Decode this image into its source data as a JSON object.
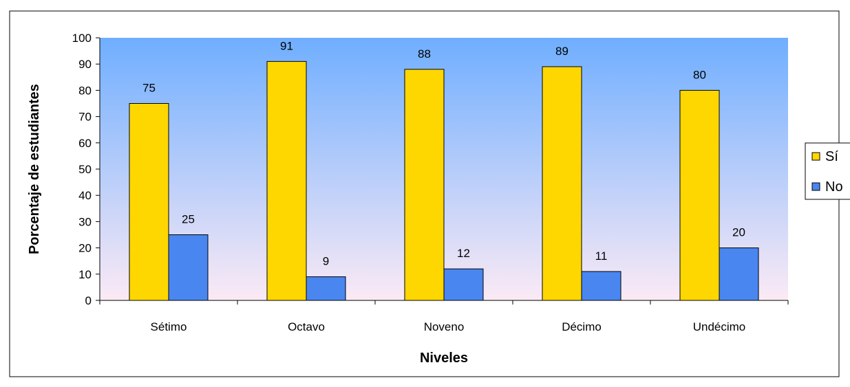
{
  "chart_data": {
    "type": "bar",
    "title": "",
    "xlabel": "Niveles",
    "ylabel": "Porcentaje de estudiantes",
    "categories": [
      "Sétimo",
      "Octavo",
      "Noveno",
      "Décimo",
      "Undécimo"
    ],
    "series": [
      {
        "name": "Sí",
        "values": [
          75,
          91,
          88,
          89,
          80
        ],
        "color": "#FFD700"
      },
      {
        "name": "No",
        "values": [
          25,
          9,
          12,
          11,
          20
        ],
        "color": "#4A86F0"
      }
    ],
    "ylim": [
      0,
      100
    ],
    "yticks": [
      0,
      10,
      20,
      30,
      40,
      50,
      60,
      70,
      80,
      90,
      100
    ],
    "yticklabels": [
      "0",
      "10",
      "20",
      "30",
      "40",
      "50",
      "60",
      "70",
      "80",
      "90",
      "100"
    ],
    "data_labels": true,
    "grid": false,
    "legend": "right",
    "plot_background": "vertical gradient from light blue to pale pink"
  },
  "colors": {
    "plot_top": "#6FAEFF",
    "plot_bottom": "#FBEAF5",
    "bar_border": "#000000"
  }
}
